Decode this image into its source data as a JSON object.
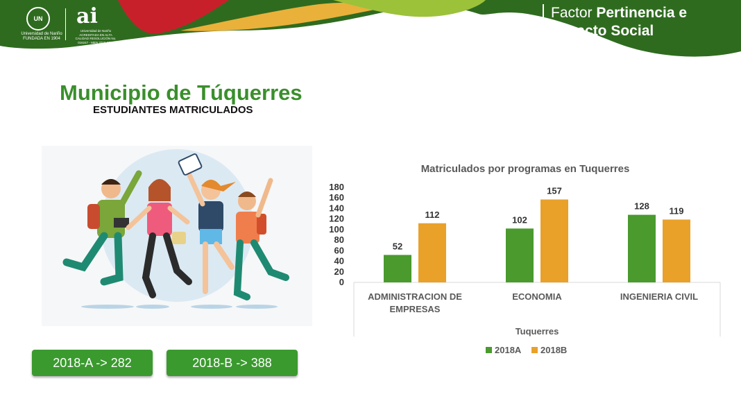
{
  "header": {
    "factor_title_light": "Factor ",
    "factor_title_bold_1": "Pertinencia e",
    "factor_title_bold_2": "Impacto Social",
    "logo_university": "Universidad de Nariño",
    "logo_university_sub": "FUNDADA EN 1904",
    "logo_ai": "ai",
    "logo_ai_sub": "Universidad de Nariño ACREDITADA EN ALTA CALIDAD RESOLUCIÓN No. 016247 - MEN 2019-2027",
    "colors": {
      "green": "#2f6b1f",
      "red": "#c8202b",
      "yellow": "#e9b13a",
      "lime": "#9cc23a"
    }
  },
  "page": {
    "title": "Municipio de Túquerres",
    "subtitle": "ESTUDIANTES MATRICULADOS"
  },
  "illustration": {
    "icon": "students-jumping-illustration"
  },
  "stats": {
    "a_label": "2018-A -> 282",
    "b_label": "2018-B -> 388"
  },
  "chart_data": {
    "type": "bar",
    "title": "Matriculados por programas en Tuquerres",
    "xlabel": "Tuquerres",
    "ylabel": "",
    "ylim": [
      0,
      180
    ],
    "yticks": [
      0,
      20,
      40,
      60,
      80,
      100,
      120,
      140,
      160,
      180
    ],
    "categories": [
      [
        "ADMINISTRACION DE",
        "EMPRESAS"
      ],
      [
        "ECONOMIA"
      ],
      [
        "INGENIERIA CIVIL"
      ]
    ],
    "series": [
      {
        "name": "2018A",
        "color": "#4a9a2e",
        "values": [
          52,
          102,
          128
        ]
      },
      {
        "name": "2018B",
        "color": "#e9a12a",
        "values": [
          112,
          157,
          119
        ]
      }
    ],
    "grid": false,
    "legend": "bottom"
  }
}
